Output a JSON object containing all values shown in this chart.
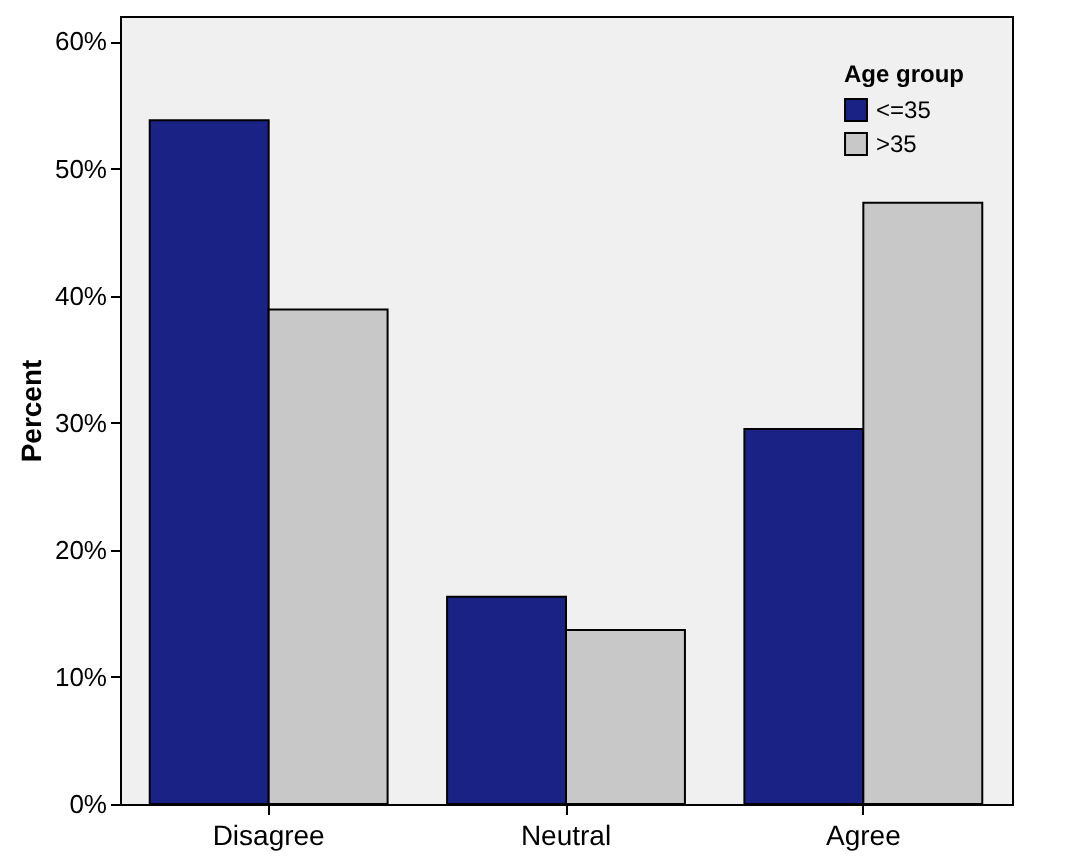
{
  "chart_data": {
    "type": "bar",
    "ylabel": "Percent",
    "legend_title": "Age group",
    "legend": "top right",
    "categories": [
      "Disagree",
      "Neutral",
      "Agree"
    ],
    "series": [
      {
        "name": "<=35",
        "color": "#1a2385",
        "values": [
          53.8,
          16.3,
          29.5
        ]
      },
      {
        "name": ">35",
        "color": "#c8c8c8",
        "values": [
          38.9,
          13.7,
          47.3
        ]
      }
    ],
    "ylim": [
      0,
      62
    ],
    "yticks": [
      {
        "value": 0,
        "label": "0%"
      },
      {
        "value": 10,
        "label": "10%"
      },
      {
        "value": 20,
        "label": "20%"
      },
      {
        "value": 30,
        "label": "30%"
      },
      {
        "value": 40,
        "label": "40%"
      },
      {
        "value": 50,
        "label": "50%"
      },
      {
        "value": 60,
        "label": "60%"
      }
    ]
  }
}
